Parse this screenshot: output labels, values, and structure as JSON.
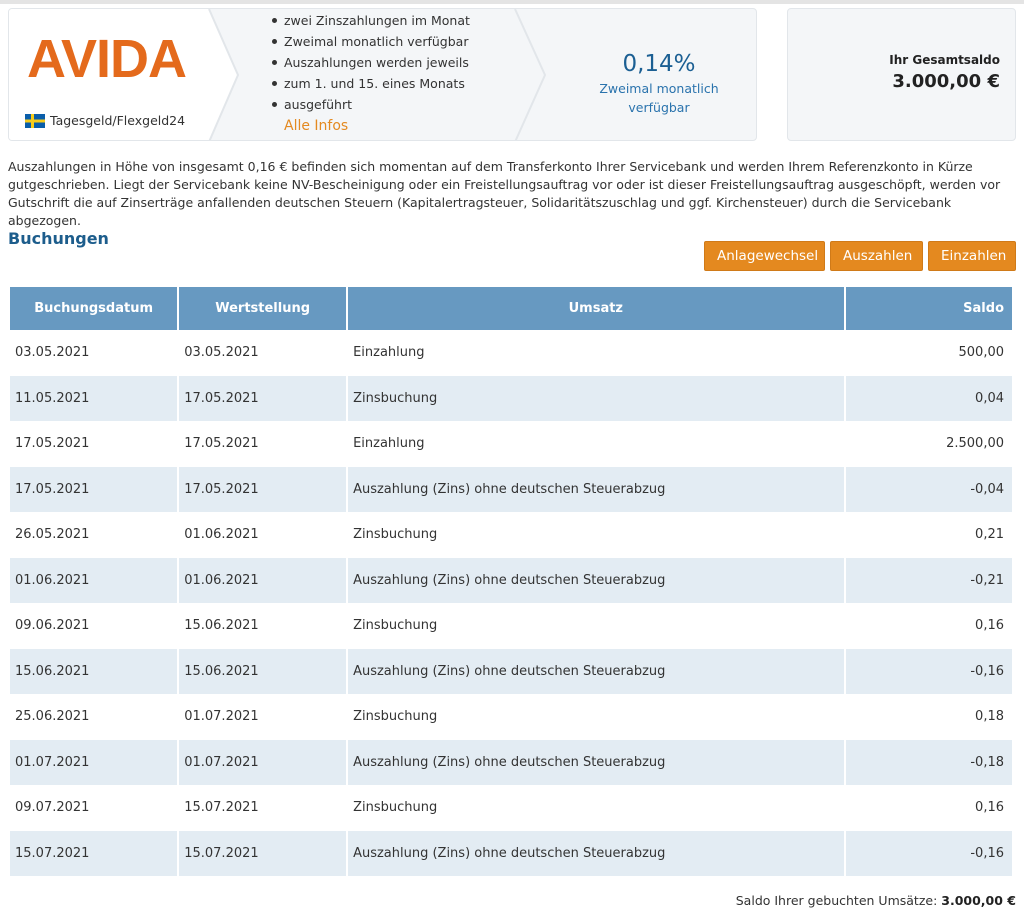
{
  "product": {
    "logo_text": "AVIDA",
    "name": "Tagesgeld/Flexgeld24",
    "features": [
      "zwei Zinszahlungen im Monat",
      "Zweimal monatlich verfügbar",
      "Auszahlungen werden jeweils",
      "zum 1. und 15. eines Monats",
      "ausgeführt"
    ],
    "all_infos_label": "Alle Infos",
    "rate": "0,14%",
    "rate_sub": "Zweimal monatlich verfügbar"
  },
  "saldo": {
    "label": "Ihr Gesamtsaldo",
    "value": "3.000,00 €"
  },
  "info_text": "Auszahlungen in Höhe von insgesamt 0,16 € befinden sich momentan auf dem Transferkonto Ihrer Servicebank und werden Ihrem Referenzkonto in Kürze gutgeschrieben. Liegt der Servicebank keine NV-Bescheinigung oder ein Freistellungsauftrag vor oder ist dieser Freistellungsauftrag ausgeschöpft, werden vor Gutschrift die auf Zinserträge anfallenden deutschen Steuern (Kapitalertragsteuer, Solidaritätszuschlag und ggf. Kirchensteuer) durch die Servicebank abgezogen.",
  "section_title": "Buchungen",
  "buttons": {
    "anlagewechsel": "Anlagewechsel",
    "auszahlen": "Auszahlen",
    "einzahlen": "Einzahlen"
  },
  "table": {
    "headers": [
      "Buchungsdatum",
      "Wertstellung",
      "Umsatz",
      "Saldo"
    ],
    "rows": [
      [
        "03.05.2021",
        "03.05.2021",
        "Einzahlung",
        "500,00"
      ],
      [
        "11.05.2021",
        "17.05.2021",
        "Zinsbuchung",
        "0,04"
      ],
      [
        "17.05.2021",
        "17.05.2021",
        "Einzahlung",
        "2.500,00"
      ],
      [
        "17.05.2021",
        "17.05.2021",
        "Auszahlung (Zins) ohne deutschen Steuerabzug",
        "-0,04"
      ],
      [
        "26.05.2021",
        "01.06.2021",
        "Zinsbuchung",
        "0,21"
      ],
      [
        "01.06.2021",
        "01.06.2021",
        "Auszahlung (Zins) ohne deutschen Steuerabzug",
        "-0,21"
      ],
      [
        "09.06.2021",
        "15.06.2021",
        "Zinsbuchung",
        "0,16"
      ],
      [
        "15.06.2021",
        "15.06.2021",
        "Auszahlung (Zins) ohne deutschen Steuerabzug",
        "-0,16"
      ],
      [
        "25.06.2021",
        "01.07.2021",
        "Zinsbuchung",
        "0,18"
      ],
      [
        "01.07.2021",
        "01.07.2021",
        "Auszahlung (Zins) ohne deutschen Steuerabzug",
        "-0,18"
      ],
      [
        "09.07.2021",
        "15.07.2021",
        "Zinsbuchung",
        "0,16"
      ],
      [
        "15.07.2021",
        "15.07.2021",
        "Auszahlung (Zins) ohne deutschen Steuerabzug",
        "-0,16"
      ]
    ]
  },
  "total": {
    "label": "Saldo Ihrer gebuchten Umsätze:",
    "value": "3.000,00 €"
  },
  "icons": {
    "flag": "sweden-flag-icon"
  },
  "colors": {
    "accent": "#e4891f",
    "header": "#6799c1",
    "row_alt": "#e3ecf3",
    "title": "#1d5d8c"
  }
}
